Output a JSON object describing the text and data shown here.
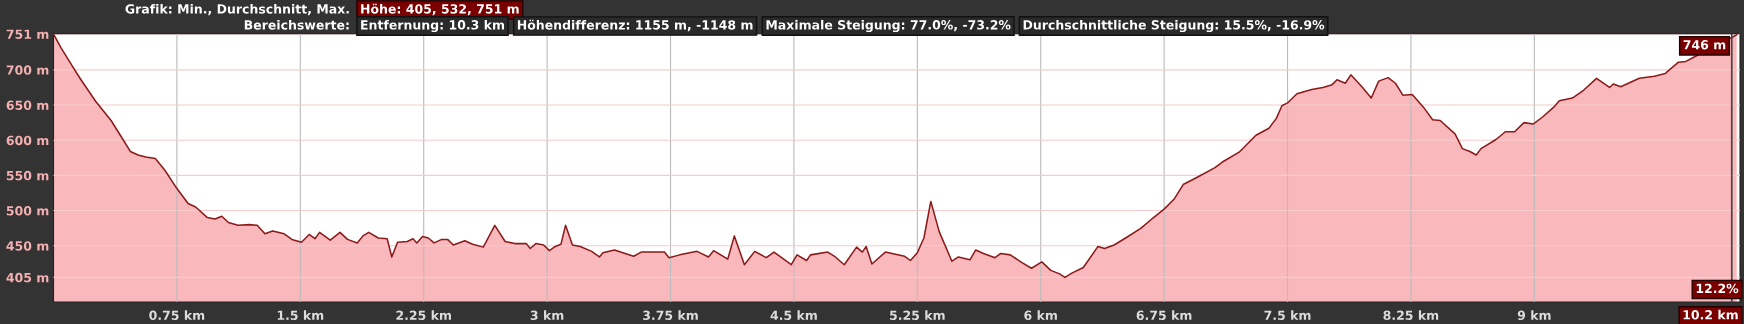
{
  "chart_data": {
    "type": "area",
    "title": "Grafik: Min., Durchschnitt, Max.",
    "subtitle": "Bereichswerte:",
    "annotations": [
      "Höhe: 405, 532, 751 m",
      "Entfernung: 10.3 km",
      "Höhendifferenz: 1155 m, -1148 m",
      "Maximale Steigung: 77.0%, -73.2%",
      "Durchschnittliche Steigung: 15.5%, -16.9%",
      {
        "text": "746 m",
        "x": 10.2,
        "y": 746
      },
      {
        "text": "12.2%",
        "x": 10.2
      }
    ],
    "series": [
      {
        "color": "#8b1a1a",
        "x": [
          0,
          0.047,
          0.105,
          0.164,
          0.257,
          0.35,
          0.409,
          0.467,
          0.514,
          0.561,
          0.619,
          0.678,
          0.748,
          0.818,
          0.864,
          0.935,
          0.981,
          1.023,
          1.063,
          1.121,
          1.192,
          1.238,
          1.285,
          1.332,
          1.402,
          1.449,
          1.507,
          1.554,
          1.589,
          1.617,
          1.682,
          1.741,
          1.787,
          1.846,
          1.881,
          1.916,
          1.974,
          2.028,
          2.056,
          2.091,
          2.15,
          2.185,
          2.208,
          2.243,
          2.278,
          2.313,
          2.36,
          2.395,
          2.43,
          2.5,
          2.547,
          2.612,
          2.682,
          2.745,
          2.804,
          2.874,
          2.897,
          2.932,
          2.979,
          3.014,
          3.05,
          3.084,
          3.112,
          3.154,
          3.201,
          3.271,
          3.318,
          3.339,
          3.409,
          3.526,
          3.572,
          3.713,
          3.741,
          3.806,
          3.911,
          3.981,
          4.012,
          4.098,
          4.138,
          4.199,
          4.262,
          4.332,
          4.379,
          4.484,
          4.519,
          4.577,
          4.601,
          4.706,
          4.752,
          4.806,
          4.881,
          4.916,
          4.939,
          4.974,
          5.056,
          5.173,
          5.208,
          5.25,
          5.29,
          5.332,
          5.383,
          5.46,
          5.5,
          5.57,
          5.605,
          5.652,
          5.722,
          5.757,
          5.815,
          5.886,
          5.944,
          6.007,
          6.061,
          6.115,
          6.147,
          6.189,
          6.259,
          6.348,
          6.388,
          6.446,
          6.516,
          6.61,
          6.68,
          6.75,
          6.81,
          6.866,
          6.957,
          7.059,
          7.104,
          7.206,
          7.308,
          7.387,
          7.432,
          7.466,
          7.5,
          7.557,
          7.647,
          7.715,
          7.771,
          7.801,
          7.851,
          7.885,
          7.952,
          8.009,
          8.054,
          8.111,
          8.156,
          8.201,
          8.258,
          8.326,
          8.382,
          8.428,
          8.518,
          8.563,
          8.608,
          8.647,
          8.676,
          8.767,
          8.824,
          8.88,
          8.937,
          8.993,
          9.05,
          9.118,
          9.152,
          9.231,
          9.299,
          9.378,
          9.457,
          9.48,
          9.525,
          9.638,
          9.729,
          9.796,
          9.876,
          9.921,
          9.977,
          10.2,
          10.23
        ],
        "values": [
          751,
          731,
          709,
          687,
          655,
          628,
          606,
          584,
          579,
          576,
          574,
          557,
          532,
          510,
          505,
          490,
          488,
          492,
          483,
          479,
          480,
          479,
          467,
          471,
          467,
          459,
          455,
          466,
          460,
          469,
          458,
          469,
          459,
          454,
          464,
          469,
          461,
          460,
          434,
          455,
          456,
          460,
          454,
          463,
          461,
          454,
          459,
          459,
          451,
          457,
          452,
          448,
          479,
          456,
          453,
          453,
          446,
          453,
          451,
          443,
          449,
          452,
          479,
          451,
          449,
          442,
          434,
          440,
          444,
          435,
          441,
          441,
          433,
          437,
          442,
          434,
          443,
          431,
          464,
          423,
          442,
          433,
          441,
          423,
          437,
          429,
          437,
          441,
          434,
          423,
          448,
          441,
          449,
          424,
          441,
          435,
          429,
          440,
          461,
          513,
          470,
          428,
          434,
          430,
          444,
          439,
          433,
          439,
          437,
          426,
          418,
          427,
          415,
          410,
          405,
          411,
          419,
          449,
          446,
          451,
          461,
          475,
          489,
          502,
          516,
          537,
          548,
          561,
          569,
          583,
          607,
          617,
          631,
          649,
          653,
          666,
          672,
          675,
          679,
          686,
          681,
          693,
          676,
          660,
          684,
          689,
          681,
          664,
          665,
          647,
          629,
          628,
          609,
          588,
          584,
          579,
          588,
          601,
          612,
          612,
          625,
          623,
          633,
          647,
          656,
          660,
          671,
          688,
          675,
          680,
          676,
          688,
          691,
          695,
          711,
          712,
          719,
          746,
          750
        ]
      }
    ],
    "xlim": [
      0,
      10.25
    ],
    "ylim": [
      370,
      751
    ],
    "xticks": [
      {
        "value": 0.75,
        "label": "0.75 km"
      },
      {
        "value": 1.5,
        "label": "1.5 km"
      },
      {
        "value": 2.25,
        "label": "2.25 km"
      },
      {
        "value": 3,
        "label": "3 km"
      },
      {
        "value": 3.75,
        "label": "3.75 km"
      },
      {
        "value": 4.5,
        "label": "4.5 km"
      },
      {
        "value": 5.25,
        "label": "5.25 km"
      },
      {
        "value": 6,
        "label": "6 km"
      },
      {
        "value": 6.75,
        "label": "6.75 km"
      },
      {
        "value": 7.5,
        "label": "7.5 km"
      },
      {
        "value": 8.25,
        "label": "8.25 km"
      },
      {
        "value": 9,
        "label": "9 km"
      }
    ],
    "yticks": [
      {
        "value": 405,
        "label": "405 m"
      },
      {
        "value": 450,
        "label": "450 m"
      },
      {
        "value": 500,
        "label": "500 m"
      },
      {
        "value": 550,
        "label": "550 m"
      },
      {
        "value": 600,
        "label": "600 m"
      },
      {
        "value": 650,
        "label": "650 m"
      },
      {
        "value": 700,
        "label": "700 m"
      },
      {
        "value": 751,
        "label": "751 m"
      }
    ],
    "ref_lines": [
      {
        "axis": "x",
        "value": 10.2,
        "label": "10.2 km",
        "color": "#444444"
      }
    ],
    "grid": true
  }
}
